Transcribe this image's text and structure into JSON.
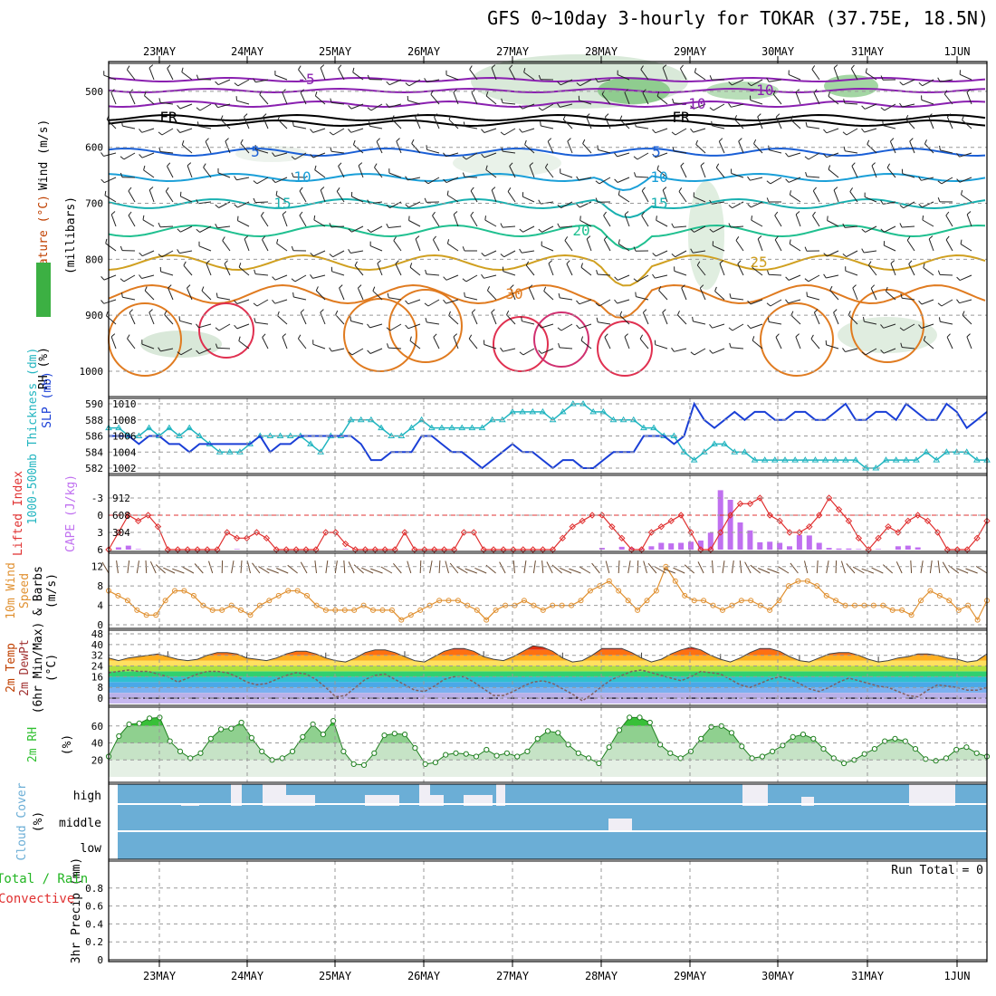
{
  "title": "GFS 0~10day 3-hourly for TOKAR (37.75E, 18.5N)",
  "date_labels": [
    "23MAY",
    "24MAY",
    "25MAY",
    "26MAY",
    "27MAY",
    "28MAY",
    "29MAY",
    "30MAY",
    "31MAY",
    "1JUN"
  ],
  "colors": {
    "rh_green": "#3cb043",
    "temp_orange": "#e07b20",
    "wind_black": "#000000",
    "thickness_cyan": "#22b5c0",
    "slp_blue": "#1a3fd6",
    "lifted_red": "#e03030",
    "cape_violet": "#c070f0",
    "wind10_orange": "#e09030",
    "wind10_brown": "#6a4a30",
    "rh2m_green": "#30c030",
    "cloud_blue": "#6baed6",
    "precip_green": "#22b522",
    "precip_red": "#e03030"
  },
  "chart_data": [
    {
      "panel": "upper_air",
      "type": "contour",
      "ylabel_parts": [
        "Wind (m/s)",
        "Temperature (°C)",
        "RH (%)",
        "(millibars)"
      ],
      "yticks": [
        500,
        600,
        700,
        800,
        900,
        1000
      ],
      "ylim": [
        450,
        1000
      ],
      "isotherms": [
        {
          "label": "-5",
          "level": 480,
          "color": "#9a20c0"
        },
        {
          "label": "-10",
          "level": 475,
          "color": "#9a20c0"
        },
        {
          "label": "FR",
          "level": 530,
          "color": "#000000"
        },
        {
          "label": "5",
          "level": 605,
          "color": "#1a5fd6"
        },
        {
          "label": "10",
          "level": 650,
          "color": "#1aa0d6"
        },
        {
          "label": "15",
          "level": 705,
          "color": "#18b8b0"
        },
        {
          "label": "20",
          "level": 750,
          "color": "#20c090"
        },
        {
          "label": "25",
          "level": 805,
          "color": "#d0a020"
        },
        {
          "label": "30",
          "level": 810,
          "color": "#e07b20"
        }
      ]
    },
    {
      "panel": "thickness_slp",
      "type": "line",
      "ylabel_left": "1000-500mb Thickness (dm)",
      "ylabel_right": "SLP (mb)",
      "left_ticks": [
        582,
        584,
        586,
        588,
        590
      ],
      "right_ticks": [
        1002,
        1004,
        1006,
        1008,
        1010
      ],
      "series": [
        {
          "name": "Thickness",
          "axis": "left",
          "values": [
            587,
            587,
            586,
            586,
            587,
            586,
            587,
            586,
            587,
            586,
            585,
            584,
            584,
            584,
            585,
            586,
            586,
            586,
            586,
            586,
            585,
            584,
            586,
            586,
            588,
            588,
            588,
            587,
            586,
            586,
            587,
            588,
            587,
            587,
            587,
            587,
            587,
            587,
            588,
            588,
            589,
            589,
            589,
            589,
            588,
            589,
            590,
            590,
            589,
            589,
            588,
            588,
            588,
            587,
            587,
            586,
            586,
            584,
            583,
            584,
            585,
            585,
            584,
            584,
            583,
            583,
            583,
            583,
            583,
            583,
            583,
            583,
            583,
            583,
            583,
            582,
            582,
            583,
            583,
            583,
            583,
            584,
            583,
            584,
            584,
            584,
            583,
            583
          ]
        },
        {
          "name": "SLP",
          "axis": "right",
          "values": [
            1006,
            1006,
            1006,
            1005,
            1006,
            1006,
            1005,
            1005,
            1004,
            1005,
            1005,
            1005,
            1005,
            1005,
            1005,
            1006,
            1004,
            1005,
            1005,
            1006,
            1006,
            1006,
            1006,
            1006,
            1006,
            1005,
            1003,
            1003,
            1004,
            1004,
            1004,
            1006,
            1006,
            1005,
            1004,
            1004,
            1003,
            1002,
            1003,
            1004,
            1005,
            1004,
            1004,
            1003,
            1002,
            1003,
            1003,
            1002,
            1002,
            1003,
            1004,
            1004,
            1004,
            1006,
            1006,
            1006,
            1005,
            1006,
            1010,
            1008,
            1007,
            1008,
            1009,
            1008,
            1009,
            1009,
            1008,
            1008,
            1009,
            1009,
            1008,
            1008,
            1009,
            1010,
            1008,
            1008,
            1009,
            1009,
            1008,
            1010,
            1009,
            1008,
            1008,
            1010,
            1009,
            1007,
            1008,
            1009
          ]
        }
      ]
    },
    {
      "panel": "lifted_cape",
      "type": "line+bar",
      "ylabel_left": "Lifted Index",
      "ylabel_right": "CAPE (J/kg)",
      "left_ticks": [
        "-3",
        "0",
        "3",
        "6"
      ],
      "right_ticks": [
        304,
        608,
        912
      ],
      "series": [
        {
          "name": "Lifted Index",
          "axis": "left",
          "values": [
            6,
            3,
            0,
            1,
            0,
            2,
            6,
            6,
            6,
            6,
            6,
            6,
            3,
            4,
            4,
            3,
            4,
            6,
            6,
            6,
            6,
            6,
            3,
            3,
            5,
            6,
            6,
            6,
            6,
            6,
            3,
            6,
            6,
            6,
            6,
            6,
            3,
            3,
            6,
            6,
            6,
            6,
            6,
            6,
            6,
            6,
            4,
            2,
            1,
            0,
            0,
            2,
            4,
            6,
            6,
            3,
            2,
            1,
            0,
            3,
            6,
            6,
            3,
            0,
            -2,
            -2,
            -3,
            0,
            1,
            3,
            3,
            2,
            0,
            -3,
            -1,
            1,
            4,
            6,
            4,
            2,
            3,
            1,
            0,
            1,
            3,
            6,
            6,
            6,
            4,
            1
          ]
        },
        {
          "name": "CAPE",
          "axis": "right",
          "type": "bar",
          "values": [
            0,
            40,
            70,
            10,
            0,
            0,
            0,
            0,
            0,
            0,
            0,
            0,
            0,
            10,
            0,
            0,
            0,
            0,
            0,
            0,
            0,
            0,
            0,
            0,
            10,
            0,
            0,
            0,
            0,
            0,
            0,
            0,
            0,
            0,
            0,
            0,
            0,
            0,
            0,
            0,
            0,
            0,
            0,
            0,
            0,
            0,
            0,
            0,
            0,
            0,
            30,
            0,
            50,
            30,
            20,
            60,
            120,
            110,
            120,
            140,
            160,
            300,
            1050,
            880,
            480,
            340,
            130,
            140,
            120,
            60,
            260,
            250,
            120,
            30,
            20,
            20,
            10,
            0,
            10,
            0,
            60,
            70,
            40,
            0,
            0,
            0,
            0,
            0,
            0,
            0
          ]
        }
      ]
    },
    {
      "panel": "wind10m",
      "type": "line",
      "ylabel": [
        "10m Wind",
        "Speed",
        "& Barbs",
        "(m/s)"
      ],
      "yticks": [
        0,
        4,
        8,
        12
      ],
      "series": [
        {
          "name": "10m Wind Speed",
          "values": [
            7,
            6,
            5,
            3,
            2,
            2,
            5,
            7,
            7,
            6,
            4,
            3,
            3,
            4,
            3,
            2,
            4,
            5,
            6,
            7,
            7,
            6,
            4,
            3,
            3,
            3,
            3,
            4,
            3,
            3,
            3,
            1,
            2,
            3,
            4,
            5,
            5,
            5,
            4,
            3,
            1,
            3,
            4,
            4,
            5,
            4,
            3,
            4,
            4,
            4,
            5,
            7,
            8,
            9,
            7,
            5,
            3,
            5,
            7,
            12,
            9,
            6,
            5,
            5,
            4,
            3,
            4,
            5,
            5,
            4,
            3,
            5,
            8,
            9,
            9,
            8,
            6,
            5,
            4,
            4,
            4,
            4,
            4,
            3,
            3,
            2,
            5,
            7,
            6,
            5,
            3,
            4,
            1,
            5
          ]
        }
      ]
    },
    {
      "panel": "temp2m",
      "type": "area",
      "ylabel": [
        "2m Temp",
        "2m DewPt",
        "(6hr Min/Max)",
        "(°C)"
      ],
      "yticks": [
        0,
        8,
        16,
        24,
        32,
        40,
        48
      ],
      "series": [
        {
          "name": "2m Temp",
          "values": [
            30,
            28,
            30,
            31,
            32,
            33,
            31,
            29,
            28,
            29,
            32,
            34,
            34,
            33,
            30,
            29,
            28,
            30,
            33,
            35,
            35,
            33,
            30,
            28,
            27,
            30,
            34,
            36,
            36,
            34,
            31,
            28,
            27,
            31,
            35,
            37,
            37,
            35,
            31,
            29,
            28,
            31,
            35,
            39,
            38,
            35,
            30,
            27,
            28,
            32,
            37,
            37,
            37,
            34,
            30,
            27,
            29,
            33,
            36,
            38,
            36,
            32,
            29,
            27,
            30,
            34,
            37,
            37,
            35,
            31,
            28,
            27,
            30,
            33,
            34,
            34,
            32,
            29,
            27,
            28,
            30,
            31,
            33,
            33,
            32,
            30,
            29,
            27,
            28,
            33
          ]
        },
        {
          "name": "2m DewPt",
          "values": [
            19,
            20,
            21,
            20,
            20,
            18,
            16,
            12,
            15,
            18,
            20,
            20,
            19,
            16,
            12,
            10,
            11,
            14,
            17,
            19,
            18,
            14,
            8,
            1,
            2,
            8,
            14,
            17,
            18,
            14,
            10,
            6,
            5,
            9,
            14,
            16,
            16,
            12,
            7,
            2,
            2,
            5,
            9,
            12,
            13,
            11,
            7,
            3,
            -2,
            3,
            9,
            14,
            17,
            20,
            21,
            19,
            17,
            15,
            13,
            16,
            20,
            19,
            18,
            14,
            10,
            8,
            11,
            14,
            16,
            14,
            11,
            7,
            5,
            8,
            12,
            15,
            13,
            11,
            9,
            8,
            5,
            2,
            1,
            6,
            10,
            9,
            8,
            6,
            6,
            8
          ]
        }
      ]
    },
    {
      "panel": "rh2m",
      "type": "area",
      "ylabel": [
        "2m RH",
        "(%)"
      ],
      "yticks": [
        20,
        40,
        60
      ],
      "series": [
        {
          "name": "2m RH",
          "values": [
            24,
            48,
            62,
            63,
            69,
            70,
            42,
            30,
            22,
            28,
            45,
            56,
            57,
            64,
            46,
            30,
            20,
            22,
            30,
            47,
            62,
            50,
            66,
            30,
            15,
            14,
            28,
            49,
            51,
            50,
            34,
            15,
            17,
            26,
            28,
            27,
            24,
            32,
            25,
            28,
            24,
            30,
            45,
            54,
            52,
            38,
            28,
            22,
            16,
            35,
            55,
            70,
            70,
            64,
            38,
            28,
            22,
            30,
            45,
            59,
            60,
            52,
            36,
            22,
            24,
            30,
            37,
            47,
            50,
            45,
            33,
            22,
            16,
            20,
            27,
            33,
            42,
            45,
            42,
            33,
            21,
            19,
            22,
            32,
            35,
            28,
            24
          ]
        }
      ]
    },
    {
      "panel": "cloud_cover",
      "type": "bar",
      "ylabel": [
        "Cloud Cover",
        "(%)"
      ],
      "row_labels": [
        "high",
        "middle",
        "low"
      ]
    },
    {
      "panel": "precip",
      "type": "bar",
      "ylabel": [
        "3hr Precip (mm)"
      ],
      "legend_total": "Total / Rain",
      "legend_convective": "Convective",
      "run_total": "Run Total = 0",
      "yticks": [
        0,
        0.2,
        0.4,
        0.6,
        0.8
      ],
      "ylim": [
        0,
        1
      ]
    }
  ]
}
